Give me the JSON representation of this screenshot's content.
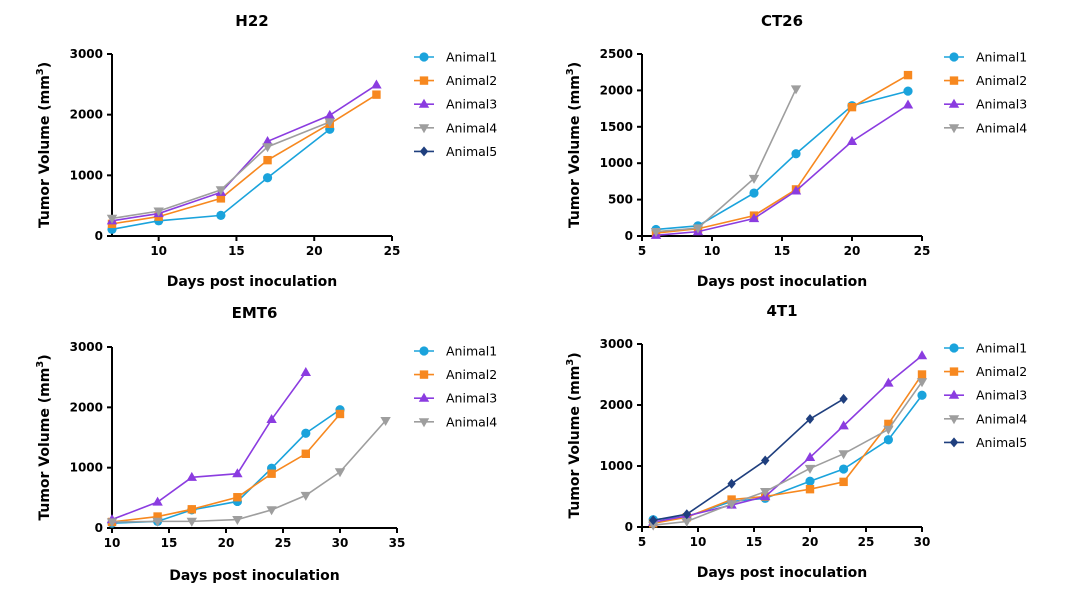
{
  "chart_data": [
    {
      "type": "line",
      "title": "H22",
      "xlabel": "Days post inoculation",
      "ylabel": "Tumor Volume (mm",
      "ylabel_sup": "3",
      "ylabel_close": ")",
      "xlim": [
        7,
        25
      ],
      "ylim": [
        0,
        3000
      ],
      "xticks": [
        10,
        15,
        20,
        25
      ],
      "yticks": [
        0,
        1000,
        2000,
        3000
      ],
      "legend": "right",
      "series": [
        {
          "name": "Animal1",
          "color": "#1aa3dc",
          "marker": "circle",
          "x": [
            7,
            10,
            14,
            17,
            21
          ],
          "y": [
            110,
            250,
            340,
            960,
            1760
          ]
        },
        {
          "name": "Animal2",
          "color": "#f7881f",
          "marker": "square",
          "x": [
            7,
            10,
            14,
            17,
            21,
            24
          ],
          "y": [
            200,
            320,
            620,
            1250,
            1850,
            2330
          ]
        },
        {
          "name": "Animal3",
          "color": "#8b3ce0",
          "marker": "triangle-up",
          "x": [
            7,
            10,
            14,
            17,
            21,
            24
          ],
          "y": [
            250,
            370,
            720,
            1560,
            1990,
            2490
          ]
        },
        {
          "name": "Animal4",
          "color": "#9e9e9e",
          "marker": "triangle-down",
          "x": [
            7,
            10,
            14,
            17,
            21
          ],
          "y": [
            290,
            410,
            760,
            1470,
            1880
          ]
        },
        {
          "name": "Animal5",
          "color": "#1f3f7e",
          "marker": "diamond",
          "x": [],
          "y": []
        }
      ]
    },
    {
      "type": "line",
      "title": "CT26",
      "xlabel": "Days post inoculation",
      "ylabel": "Tumor Volume (mm",
      "ylabel_sup": "3",
      "ylabel_close": ")",
      "xlim": [
        5,
        25
      ],
      "ylim": [
        0,
        2500
      ],
      "xticks": [
        5,
        10,
        15,
        20,
        25
      ],
      "yticks": [
        0,
        500,
        1000,
        1500,
        2000,
        2500
      ],
      "legend": "right",
      "series": [
        {
          "name": "Animal1",
          "color": "#1aa3dc",
          "marker": "circle",
          "x": [
            6,
            9,
            13,
            16,
            20,
            24
          ],
          "y": [
            90,
            140,
            590,
            1130,
            1790,
            1990
          ]
        },
        {
          "name": "Animal2",
          "color": "#f7881f",
          "marker": "square",
          "x": [
            6,
            9,
            13,
            16,
            20,
            24
          ],
          "y": [
            40,
            100,
            280,
            640,
            1770,
            2210
          ]
        },
        {
          "name": "Animal3",
          "color": "#8b3ce0",
          "marker": "triangle-up",
          "x": [
            6,
            9,
            13,
            16,
            20,
            24
          ],
          "y": [
            10,
            60,
            240,
            620,
            1300,
            1800
          ]
        },
        {
          "name": "Animal4",
          "color": "#9e9e9e",
          "marker": "triangle-down",
          "x": [
            6,
            9,
            13,
            16
          ],
          "y": [
            60,
            110,
            790,
            2020
          ]
        }
      ]
    },
    {
      "type": "line",
      "title": "EMT6",
      "xlabel": "Days post inoculation",
      "ylabel": "Tumor Volume (mm",
      "ylabel_sup": "3",
      "ylabel_close": ")",
      "xlim": [
        10,
        35
      ],
      "ylim": [
        0,
        3000
      ],
      "xticks": [
        10,
        15,
        20,
        25,
        30,
        35
      ],
      "yticks": [
        0,
        1000,
        2000,
        3000
      ],
      "legend": "right",
      "series": [
        {
          "name": "Animal1",
          "color": "#1aa3dc",
          "marker": "circle",
          "x": [
            10,
            14,
            17,
            21,
            24,
            27,
            30
          ],
          "y": [
            80,
            110,
            300,
            440,
            990,
            1570,
            1960
          ]
        },
        {
          "name": "Animal2",
          "color": "#f7881f",
          "marker": "square",
          "x": [
            10,
            14,
            17,
            21,
            24,
            27,
            30
          ],
          "y": [
            100,
            190,
            310,
            510,
            900,
            1230,
            1890
          ]
        },
        {
          "name": "Animal3",
          "color": "#8b3ce0",
          "marker": "triangle-up",
          "x": [
            10,
            14,
            17,
            21,
            24,
            27
          ],
          "y": [
            140,
            430,
            840,
            900,
            1800,
            2580
          ]
        },
        {
          "name": "Animal4",
          "color": "#9e9e9e",
          "marker": "triangle-down",
          "x": [
            10,
            14,
            17,
            21,
            24,
            27,
            30,
            34
          ],
          "y": [
            100,
            110,
            110,
            140,
            300,
            540,
            930,
            1780
          ]
        }
      ]
    },
    {
      "type": "line",
      "title": "4T1",
      "xlabel": "Days post inoculation",
      "ylabel": "Tumor Volume (mm",
      "ylabel_sup": "3",
      "ylabel_close": ")",
      "xlim": [
        5,
        30
      ],
      "ylim": [
        0,
        3000
      ],
      "xticks": [
        5,
        10,
        15,
        20,
        25,
        30
      ],
      "yticks": [
        0,
        1000,
        2000,
        3000
      ],
      "legend": "right",
      "series": [
        {
          "name": "Animal1",
          "color": "#1aa3dc",
          "marker": "circle",
          "x": [
            6,
            9,
            13,
            16,
            20,
            23,
            27,
            30
          ],
          "y": [
            120,
            170,
            420,
            470,
            750,
            950,
            1430,
            2160
          ]
        },
        {
          "name": "Animal2",
          "color": "#f7881f",
          "marker": "square",
          "x": [
            6,
            9,
            13,
            16,
            20,
            23,
            27,
            30
          ],
          "y": [
            60,
            160,
            450,
            500,
            620,
            740,
            1690,
            2500
          ]
        },
        {
          "name": "Animal3",
          "color": "#8b3ce0",
          "marker": "triangle-up",
          "x": [
            6,
            9,
            13,
            16,
            20,
            23,
            27,
            30
          ],
          "y": [
            80,
            180,
            360,
            500,
            1140,
            1660,
            2360,
            2810
          ]
        },
        {
          "name": "Animal4",
          "color": "#9e9e9e",
          "marker": "triangle-down",
          "x": [
            6,
            9,
            13,
            16,
            20,
            23,
            27,
            30
          ],
          "y": [
            30,
            90,
            380,
            580,
            960,
            1200,
            1600,
            2380
          ]
        },
        {
          "name": "Animal5",
          "color": "#1f3f7e",
          "marker": "diamond",
          "x": [
            6,
            9,
            13,
            16,
            20,
            23
          ],
          "y": [
            110,
            210,
            710,
            1090,
            1770,
            2100
          ]
        }
      ]
    }
  ]
}
